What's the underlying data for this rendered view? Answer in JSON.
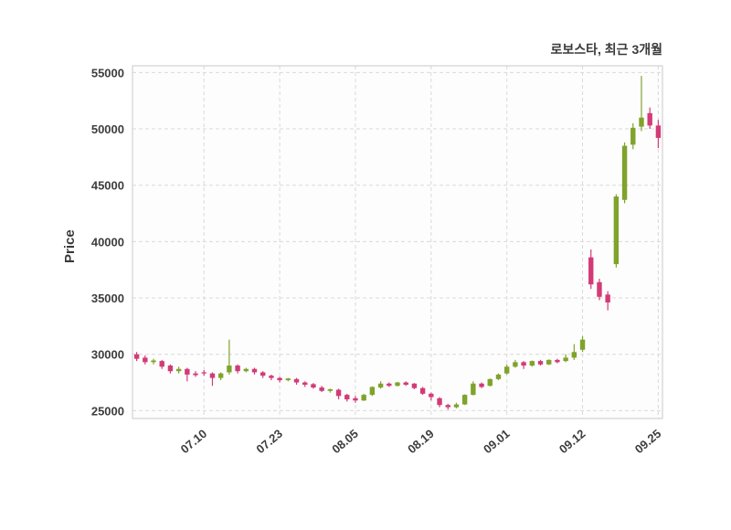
{
  "chart_data": {
    "type": "candlestick",
    "title": "로보스타, 최근 3개월",
    "ylabel": "Price",
    "xlabel": "",
    "up_color": "#7fa32b",
    "down_color": "#d23b77",
    "grid_color": "#d9d9d9",
    "border_color": "#c9c9c9",
    "tick_color": "#3d3d3d",
    "plot_bg": "#fdfdfd",
    "figure_bg": "#ffffff",
    "ylim": [
      24300,
      55600
    ],
    "yticks": [
      25000,
      30000,
      35000,
      40000,
      45000,
      50000,
      55000
    ],
    "xticks": [
      {
        "label": "07.10",
        "index": 8
      },
      {
        "label": "07.23",
        "index": 17
      },
      {
        "label": "08.05",
        "index": 26
      },
      {
        "label": "08.19",
        "index": 35
      },
      {
        "label": "09.01",
        "index": 44
      },
      {
        "label": "09.12",
        "index": 53
      },
      {
        "label": "09.25",
        "index": 62
      }
    ],
    "dates": [
      "06.30",
      "07.01",
      "07.02",
      "07.03",
      "07.04",
      "07.07",
      "07.08",
      "07.09",
      "07.10",
      "07.11",
      "07.14",
      "07.15",
      "07.16",
      "07.17",
      "07.18",
      "07.21",
      "07.22",
      "07.23",
      "07.24",
      "07.25",
      "07.28",
      "07.29",
      "07.30",
      "07.31",
      "08.01",
      "08.04",
      "08.05",
      "08.06",
      "08.07",
      "08.08",
      "08.11",
      "08.12",
      "08.13",
      "08.14",
      "08.18",
      "08.19",
      "08.20",
      "08.21",
      "08.22",
      "08.25",
      "08.26",
      "08.27",
      "08.28",
      "08.29",
      "09.01",
      "09.02",
      "09.03",
      "09.04",
      "09.05",
      "09.08",
      "09.09",
      "09.10",
      "09.11",
      "09.12",
      "09.15",
      "09.16",
      "09.17",
      "09.18",
      "09.19",
      "09.22",
      "09.23",
      "09.24",
      "09.25"
    ],
    "ohlc": [
      [
        30000,
        30200,
        29400,
        29600
      ],
      [
        29700,
        29900,
        29100,
        29300
      ],
      [
        29300,
        29600,
        29100,
        29450
      ],
      [
        29400,
        29500,
        28700,
        28900
      ],
      [
        29000,
        29100,
        28300,
        28500
      ],
      [
        28500,
        28900,
        28300,
        28700
      ],
      [
        28700,
        28800,
        27600,
        28200
      ],
      [
        28300,
        28500,
        28000,
        28150
      ],
      [
        28400,
        28600,
        28100,
        28300
      ],
      [
        28300,
        28400,
        27200,
        27900
      ],
      [
        27900,
        28400,
        27700,
        28300
      ],
      [
        28400,
        31300,
        28200,
        29000
      ],
      [
        29000,
        29100,
        28300,
        28500
      ],
      [
        28500,
        28800,
        28400,
        28700
      ],
      [
        28700,
        28800,
        28200,
        28400
      ],
      [
        28400,
        28500,
        27900,
        28100
      ],
      [
        28100,
        28200,
        27700,
        27900
      ],
      [
        27900,
        28000,
        27500,
        27700
      ],
      [
        27700,
        27900,
        27600,
        27850
      ],
      [
        27800,
        27900,
        27300,
        27500
      ],
      [
        27500,
        27600,
        27100,
        27300
      ],
      [
        27350,
        27450,
        26950,
        27050
      ],
      [
        27050,
        27200,
        26650,
        26750
      ],
      [
        26750,
        26950,
        26600,
        26900
      ],
      [
        26850,
        26950,
        26000,
        26300
      ],
      [
        26400,
        26500,
        25800,
        26000
      ],
      [
        26100,
        26300,
        25700,
        25900
      ],
      [
        25900,
        26500,
        25850,
        26400
      ],
      [
        26400,
        27150,
        26300,
        27100
      ],
      [
        27050,
        27600,
        26950,
        27400
      ],
      [
        27400,
        27500,
        27100,
        27200
      ],
      [
        27200,
        27550,
        27150,
        27500
      ],
      [
        27500,
        27600,
        27200,
        27300
      ],
      [
        27400,
        27450,
        26900,
        27000
      ],
      [
        27000,
        27100,
        26400,
        26500
      ],
      [
        26500,
        26600,
        25900,
        26200
      ],
      [
        26100,
        26200,
        25300,
        25500
      ],
      [
        25500,
        25600,
        25100,
        25300
      ],
      [
        25300,
        25700,
        25200,
        25550
      ],
      [
        25550,
        26450,
        25500,
        26400
      ],
      [
        26400,
        27600,
        26350,
        27400
      ],
      [
        27400,
        27500,
        27000,
        27100
      ],
      [
        27200,
        27850,
        27150,
        27800
      ],
      [
        27800,
        28300,
        27700,
        28200
      ],
      [
        28300,
        29100,
        28200,
        28900
      ],
      [
        28900,
        29500,
        28800,
        29300
      ],
      [
        29300,
        29400,
        28700,
        29000
      ],
      [
        29000,
        29450,
        28900,
        29400
      ],
      [
        29400,
        29500,
        29000,
        29100
      ],
      [
        29100,
        29550,
        29050,
        29500
      ],
      [
        29500,
        29600,
        29200,
        29300
      ],
      [
        29400,
        30000,
        29300,
        29700
      ],
      [
        29700,
        30900,
        29500,
        30200
      ],
      [
        30400,
        31600,
        30200,
        31300
      ],
      [
        38600,
        39300,
        35800,
        36200
      ],
      [
        36400,
        36700,
        34800,
        35100
      ],
      [
        35300,
        35600,
        33900,
        34600
      ],
      [
        38000,
        44200,
        37700,
        44000
      ],
      [
        43700,
        48800,
        43400,
        48500
      ],
      [
        48600,
        50500,
        48200,
        50100
      ],
      [
        50200,
        54700,
        49800,
        51000
      ],
      [
        51400,
        51900,
        50000,
        50300
      ],
      [
        50300,
        50800,
        48300,
        49200
      ]
    ]
  }
}
